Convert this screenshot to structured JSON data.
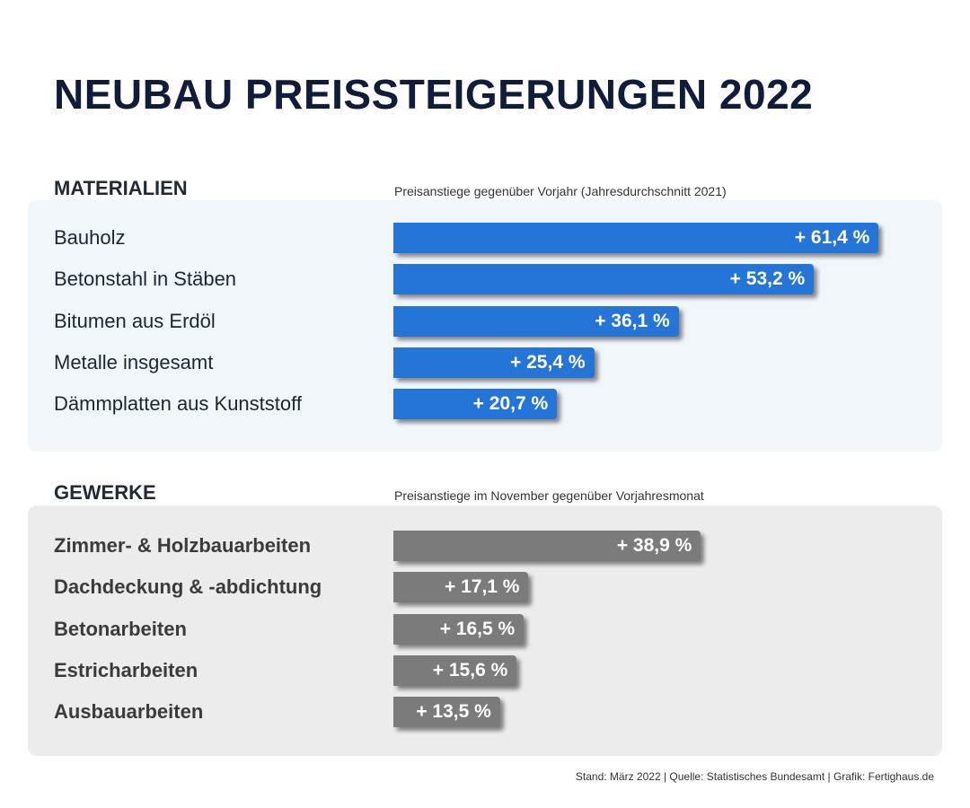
{
  "title": "NEUBAU PREISSTEIGERUNGEN 2022",
  "chart_data": [
    {
      "type": "bar",
      "orientation": "horizontal",
      "title": "MATERIALIEN",
      "subtitle": "Preisanstiege gegenüber Vorjahr (Jahresdurchschnitt 2021)",
      "color": "#2575d8",
      "categories": [
        "Bauholz",
        "Betonstahl in Stäben",
        "Bitumen aus Erdöl",
        "Metalle insgesamt",
        "Dämmplatten aus Kunststoff"
      ],
      "values": [
        61.4,
        53.2,
        36.1,
        25.4,
        20.7
      ],
      "labels": [
        "+ 61,4 %",
        "+ 53,2 %",
        "+ 36,1 %",
        "+ 25,4 %",
        "+ 20,7 %"
      ],
      "unit": "%"
    },
    {
      "type": "bar",
      "orientation": "horizontal",
      "title": "GEWERKE",
      "subtitle": "Preisanstiege im November gegenüber Vorjahresmonat",
      "color": "#7b7b7b",
      "categories": [
        "Zimmer- & Holzbauarbeiten",
        "Dachdeckung & -abdichtung",
        "Betonarbeiten",
        "Estricharbeiten",
        "Ausbauarbeiten"
      ],
      "values": [
        38.9,
        17.1,
        16.5,
        15.6,
        13.5
      ],
      "labels": [
        "+ 38,9 %",
        "+ 17,1 %",
        "+ 16,5 %",
        "+ 15,6 %",
        "+ 13,5 %"
      ],
      "unit": "%"
    }
  ],
  "footer": "Stand: März 2022 | Quelle: Statistisches Bundesamt | Grafik: Fertighaus.de"
}
